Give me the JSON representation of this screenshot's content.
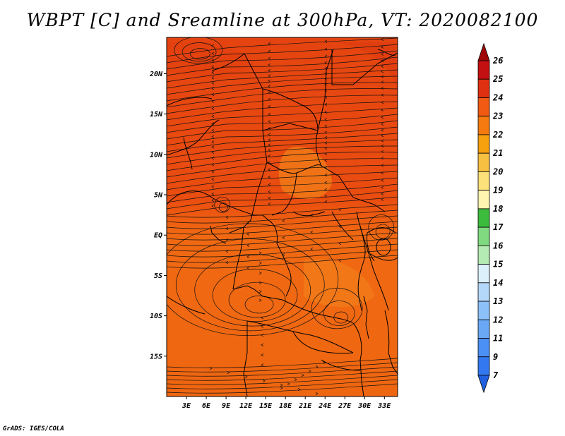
{
  "title": "WBPT [C] and Sreamline at 300hPa, VT: 2020082100",
  "footer": "GrADS: IGES/COLA",
  "map": {
    "lat_range": [
      -20,
      24.5
    ],
    "lon_range": [
      0,
      35
    ],
    "lat_ticks": [
      {
        "value": 20,
        "label": "20N"
      },
      {
        "value": 15,
        "label": "15N"
      },
      {
        "value": 10,
        "label": "10N"
      },
      {
        "value": 5,
        "label": "5N"
      },
      {
        "value": 0,
        "label": "EQ"
      },
      {
        "value": -5,
        "label": "5S"
      },
      {
        "value": -10,
        "label": "10S"
      },
      {
        "value": -15,
        "label": "15S"
      }
    ],
    "lon_ticks": [
      {
        "value": 3,
        "label": "3E"
      },
      {
        "value": 6,
        "label": "6E"
      },
      {
        "value": 9,
        "label": "9E"
      },
      {
        "value": 12,
        "label": "12E"
      },
      {
        "value": 15,
        "label": "15E"
      },
      {
        "value": 18,
        "label": "18E"
      },
      {
        "value": 21,
        "label": "21E"
      },
      {
        "value": 24,
        "label": "24E"
      },
      {
        "value": 27,
        "label": "27E"
      },
      {
        "value": 30,
        "label": "30E"
      },
      {
        "value": 33,
        "label": "33E"
      }
    ],
    "field_colors": {
      "north": "#e8460f",
      "south": "#f06a10",
      "light": "#f27e1a"
    }
  },
  "colorbar": {
    "levels": [
      "7",
      "9",
      "11",
      "12",
      "13",
      "14",
      "15",
      "16",
      "17",
      "18",
      "19",
      "20",
      "21",
      "22",
      "23",
      "24",
      "25",
      "26"
    ],
    "colors": [
      "#2060e0",
      "#3478f0",
      "#4a90f5",
      "#6aa8f5",
      "#8cc0f8",
      "#b4d8fa",
      "#dcf0fc",
      "#b4eab4",
      "#80da80",
      "#3cbc3c",
      "#fff4b0",
      "#fce07a",
      "#f8c040",
      "#f7a10f",
      "#f57b10",
      "#f05a12",
      "#e03012",
      "#c41010",
      "#a00808"
    ]
  }
}
